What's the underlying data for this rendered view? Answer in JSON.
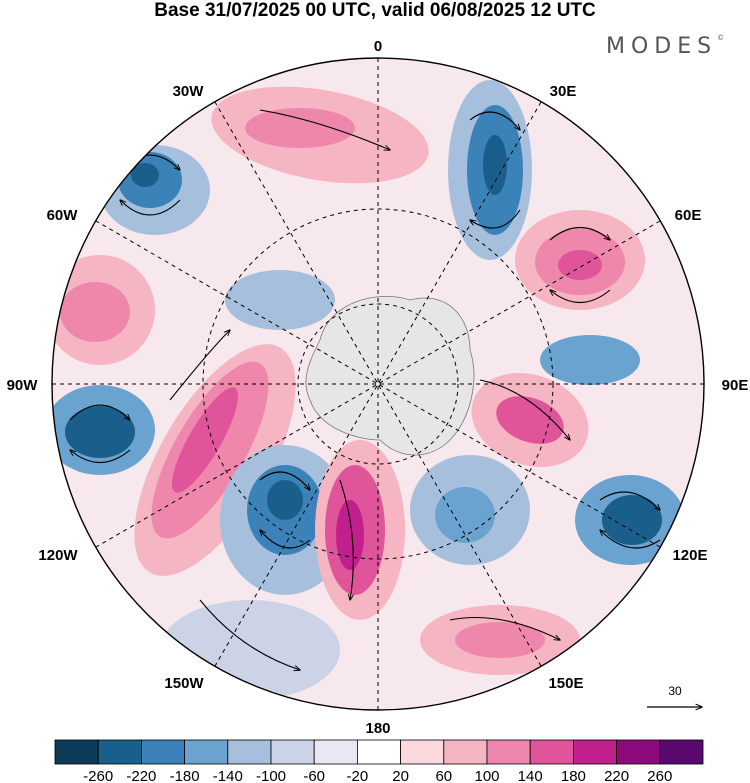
{
  "header": {
    "title": "Base 31/07/2025 00 UTC, valid 06/08/2025 12 UTC",
    "brand": "MODES",
    "brand_mark": "©"
  },
  "map": {
    "projection": "south-polar-stereographic",
    "longitude_labels": {
      "lon_0": "0",
      "lon_30e": "30E",
      "lon_60e": "60E",
      "lon_90e": "90E",
      "lon_120e": "120E",
      "lon_150e": "150E",
      "lon_180": "180",
      "lon_150w": "150W",
      "lon_120w": "120W",
      "lon_90w": "90W",
      "lon_60w": "60W",
      "lon_30w": "30W"
    },
    "reference_vector": {
      "value": "30"
    }
  },
  "colorbar": {
    "labels": [
      "-260",
      "-220",
      "-180",
      "-140",
      "-100",
      "-60",
      "-20",
      "20",
      "60",
      "100",
      "140",
      "180",
      "220",
      "260"
    ],
    "colors": [
      "#0d3b5a",
      "#1a5f8c",
      "#3b82b8",
      "#6aa3cf",
      "#a6bfdd",
      "#ccd3e6",
      "#e9e7f1",
      "#ffffff",
      "#fbd9dc",
      "#f6b5c2",
      "#ef86ac",
      "#e0559a",
      "#c1208c",
      "#8c0a7c",
      "#5a0a6e"
    ]
  },
  "colors": {
    "land": "#e6e6e6",
    "grid": "#000000",
    "arrow": "#000000"
  }
}
